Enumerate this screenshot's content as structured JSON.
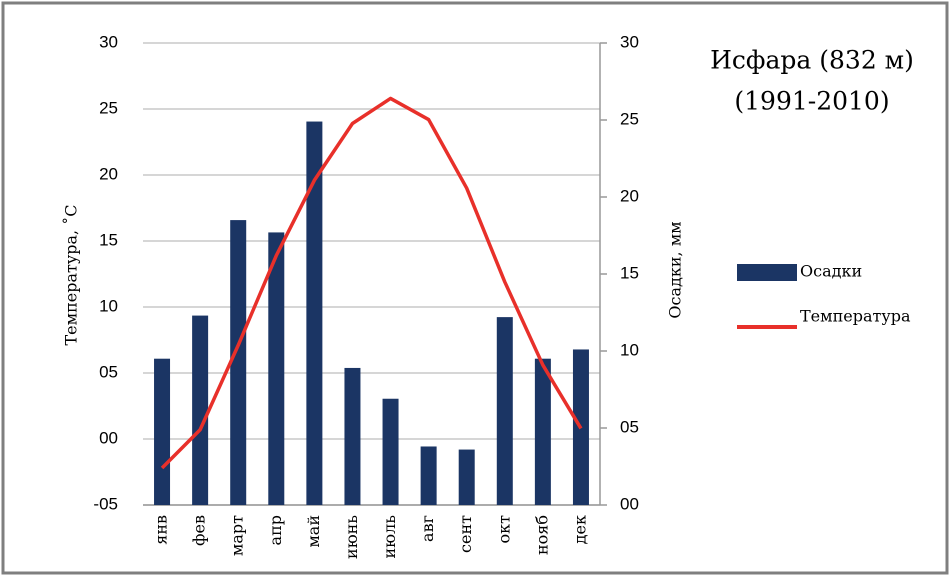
{
  "chart_data": {
    "type": "combo",
    "title": "Исфара (832 м)",
    "subtitle": "(1991-2010)",
    "y_label": "Температура, ˚С",
    "y2_label": "Осадки, мм",
    "categories": [
      "янв",
      "фев",
      "март",
      "апр",
      "май",
      "июнь",
      "июль",
      "авг",
      "сент",
      "окт",
      "нояб",
      "дек"
    ],
    "series": [
      {
        "name": "Осадки",
        "type": "bar",
        "axis": "y2",
        "color": "#1b3564",
        "values": [
          9.5,
          12.3,
          18.5,
          17.7,
          24.9,
          8.9,
          6.9,
          3.8,
          3.6,
          12.2,
          9.5,
          10.1
        ]
      },
      {
        "name": "Температура",
        "type": "line",
        "color": "#e8302a",
        "values": [
          -2.2,
          0.7,
          7.1,
          13.9,
          19.6,
          23.9,
          25.8,
          24.2,
          19.0,
          11.9,
          5.6,
          0.8
        ]
      }
    ],
    "ylim": [
      -5,
      30
    ],
    "yticks": [
      {
        "value": -5,
        "label": "-05"
      },
      {
        "value": 0,
        "label": "00"
      },
      {
        "value": 5,
        "label": "05"
      },
      10,
      15,
      20,
      25,
      30
    ],
    "y2lim": [
      0,
      30
    ],
    "y2ticks": [
      {
        "value": 0,
        "label": "00"
      },
      {
        "value": 5,
        "label": "05"
      },
      10,
      15,
      20,
      25,
      30
    ],
    "grid": true
  }
}
